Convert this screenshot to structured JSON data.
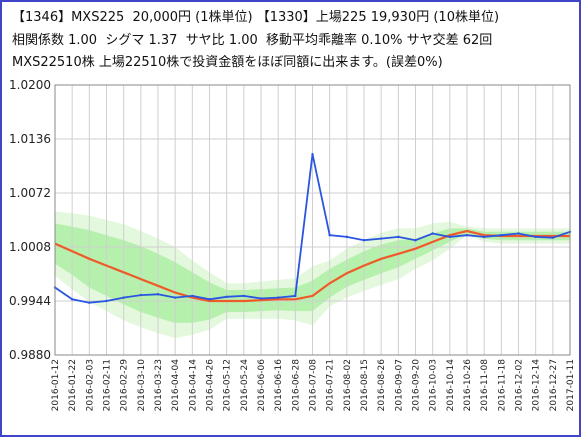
{
  "header": {
    "line1": "【1346】MXS225  20,000円 (1株単位) 【1330】上場225 19,930円 (10株単位)",
    "line2": "相関係数 1.00  シグマ 1.37  サヤ比 1.00  移動平均乖離率 0.10% サヤ交差 62回",
    "line3": "MXS22510株 上場22510株で投資金額をほぼ同額に出来ます。(誤差0%)"
  },
  "colors": {
    "frame": "#3f44c8",
    "ratio": "#2a55e0",
    "ma": "#ef5a2a",
    "band_outer": "#e3f8dc",
    "band_inner": "#b6f0ad",
    "grid": "#cfcfcf"
  },
  "chart_data": {
    "type": "line",
    "title": "",
    "xlabel": "",
    "ylabel": "",
    "ylim": [
      0.988,
      1.02
    ],
    "yticks": [
      "1.0200",
      "1.0136",
      "1.0072",
      "1.0008",
      "0.9944",
      "0.9880"
    ],
    "x": [
      "2016-01-12",
      "2016-01-22",
      "2016-02-03",
      "2016-02-11",
      "2016-02-29",
      "2016-03-10",
      "2016-03-23",
      "2016-04-04",
      "2016-04-14",
      "2016-04-26",
      "2016-05-12",
      "2016-05-24",
      "2016-06-06",
      "2016-06-16",
      "2016-06-28",
      "2016-07-08",
      "2016-07-21",
      "2016-08-02",
      "2016-08-15",
      "2016-08-26",
      "2016-09-07",
      "2016-09-20",
      "2016-10-03",
      "2016-10-14",
      "2016-10-26",
      "2016-11-08",
      "2016-11-18",
      "2016-12-02",
      "2016-12-14",
      "2016-12-27",
      "2017-01-11"
    ],
    "grid": true,
    "series": [
      {
        "values": [
          0.996,
          0.9946,
          0.9942,
          0.9944,
          0.9948,
          0.9951,
          0.9952,
          0.9948,
          0.995,
          0.9946,
          0.9949,
          0.995,
          0.9947,
          0.9948,
          0.995,
          1.0118,
          1.0022,
          1.002,
          1.0016,
          1.0018,
          1.002,
          1.0016,
          1.0024,
          1.002,
          1.0022,
          1.002,
          1.0022,
          1.0024,
          1.002,
          1.0019,
          1.0026
        ]
      },
      {
        "values": [
          1.0012,
          1.0003,
          0.9994,
          0.9986,
          0.9978,
          0.997,
          0.9962,
          0.9954,
          0.9948,
          0.9944,
          0.9944,
          0.9944,
          0.9945,
          0.9946,
          0.9946,
          0.995,
          0.9965,
          0.9977,
          0.9986,
          0.9994,
          1.0,
          1.0006,
          1.0014,
          1.0022,
          1.0027,
          1.0022,
          1.0021,
          1.0021,
          1.0021,
          1.0021,
          1.0021
        ]
      },
      {
        "values": [
          1.005,
          1.0048,
          1.0045,
          1.004,
          1.0035,
          1.0027,
          1.0018,
          1.0008,
          0.9992,
          0.9978,
          0.9965,
          0.9965,
          0.9967,
          0.9969,
          0.9971,
          0.9985,
          0.9992,
          1.0006,
          1.0016,
          1.0025,
          1.003,
          1.003,
          1.0036,
          1.0038,
          1.0032,
          1.003,
          1.003,
          1.003,
          1.003,
          1.003,
          1.003
        ]
      },
      {
        "values": [
          0.9974,
          0.9958,
          0.9943,
          0.9932,
          0.9921,
          0.9913,
          0.9906,
          0.99,
          0.9904,
          0.991,
          0.9923,
          0.9923,
          0.9923,
          0.9923,
          0.9921,
          0.9915,
          0.9938,
          0.9948,
          0.9956,
          0.9963,
          0.997,
          0.9982,
          0.9992,
          1.0006,
          1.0022,
          1.0014,
          1.0012,
          1.0012,
          1.0012,
          1.0012,
          1.0012
        ]
      },
      {
        "values": [
          1.0036,
          1.0032,
          1.0028,
          1.0022,
          1.0016,
          1.0009,
          1.0,
          0.999,
          0.9978,
          0.9966,
          0.9957,
          0.9957,
          0.9958,
          0.9959,
          0.996,
          0.9968,
          0.9982,
          0.9993,
          1.0003,
          1.0011,
          1.0016,
          1.0018,
          1.0024,
          1.003,
          1.003,
          1.0026,
          1.0026,
          1.0026,
          1.0026,
          1.0026,
          1.0026
        ]
      },
      {
        "values": [
          0.9988,
          0.9975,
          0.996,
          0.995,
          0.994,
          0.9931,
          0.9924,
          0.9918,
          0.9918,
          0.9922,
          0.9931,
          0.9931,
          0.9932,
          0.9933,
          0.9932,
          0.9932,
          0.9948,
          0.9961,
          0.9969,
          0.9977,
          0.9984,
          0.9994,
          1.0004,
          1.0014,
          1.0024,
          1.0018,
          1.0016,
          1.0016,
          1.0016,
          1.0016,
          1.0016
        ]
      }
    ]
  }
}
